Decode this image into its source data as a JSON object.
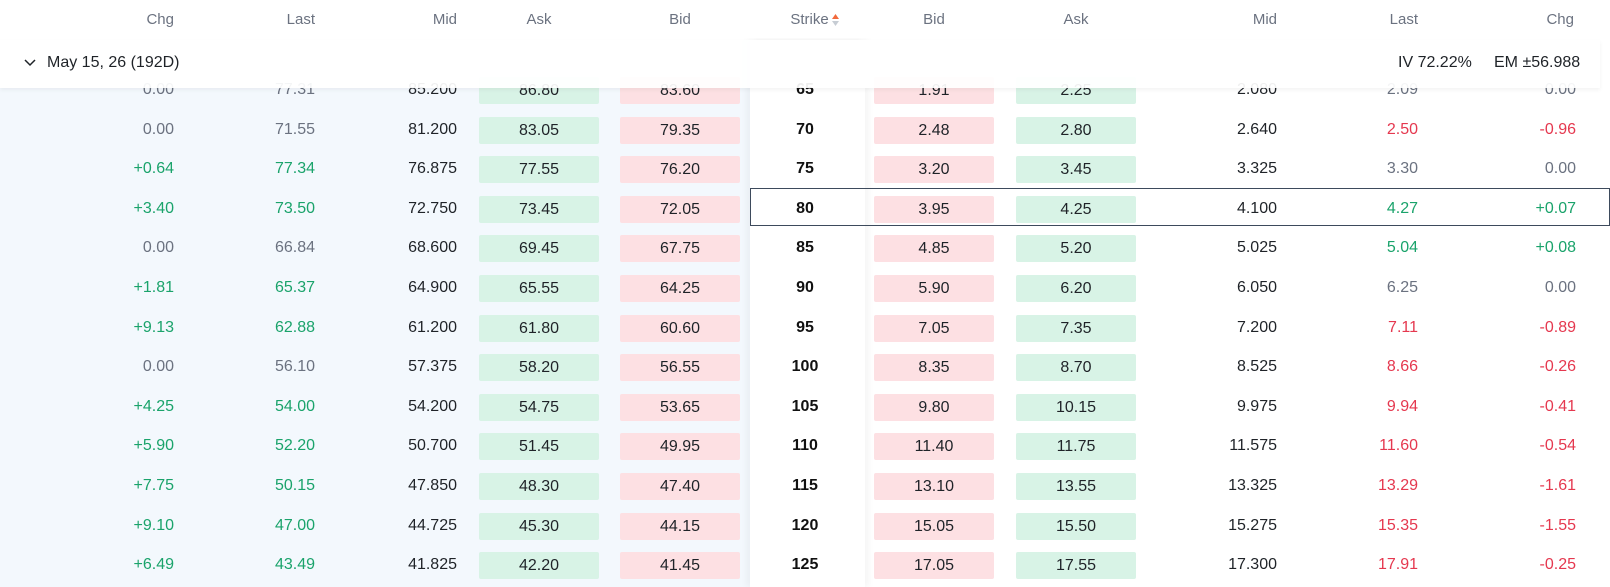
{
  "header": {
    "calls": {
      "chg": "Chg",
      "last": "Last",
      "mid": "Mid",
      "ask": "Ask",
      "bid": "Bid"
    },
    "strike": "Strike",
    "puts": {
      "bid": "Bid",
      "ask": "Ask",
      "mid": "Mid",
      "last": "Last",
      "chg": "Chg"
    }
  },
  "sort_icon": "sort-asc-desc-icon",
  "expiry": {
    "date_label": "May 15, 26 (192D)",
    "iv": "IV 72.22%",
    "em": "EM ±56.988",
    "chevron_icon": "chevron-down-icon"
  },
  "colors": {
    "positive": "#1aa36b",
    "negative": "#e5384f",
    "ask_bg": "#d8f3e6",
    "bid_bg": "#fde0e3"
  },
  "selected_strike": "80",
  "rows": [
    {
      "strike": "65",
      "c_chg": "0.00",
      "c_last": "77.31",
      "c_mid": "85.200",
      "c_ask": "86.80",
      "c_bid": "83.60",
      "p_bid": "1.91",
      "p_ask": "2.25",
      "p_mid": "2.080",
      "p_last": "2.09",
      "p_chg": "0.00"
    },
    {
      "strike": "70",
      "c_chg": "0.00",
      "c_last": "71.55",
      "c_mid": "81.200",
      "c_ask": "83.05",
      "c_bid": "79.35",
      "p_bid": "2.48",
      "p_ask": "2.80",
      "p_mid": "2.640",
      "p_last": "2.50",
      "p_chg": "-0.96"
    },
    {
      "strike": "75",
      "c_chg": "+0.64",
      "c_last": "77.34",
      "c_mid": "76.875",
      "c_ask": "77.55",
      "c_bid": "76.20",
      "p_bid": "3.20",
      "p_ask": "3.45",
      "p_mid": "3.325",
      "p_last": "3.30",
      "p_chg": "0.00"
    },
    {
      "strike": "80",
      "c_chg": "+3.40",
      "c_last": "73.50",
      "c_mid": "72.750",
      "c_ask": "73.45",
      "c_bid": "72.05",
      "p_bid": "3.95",
      "p_ask": "4.25",
      "p_mid": "4.100",
      "p_last": "4.27",
      "p_chg": "+0.07"
    },
    {
      "strike": "85",
      "c_chg": "0.00",
      "c_last": "66.84",
      "c_mid": "68.600",
      "c_ask": "69.45",
      "c_bid": "67.75",
      "p_bid": "4.85",
      "p_ask": "5.20",
      "p_mid": "5.025",
      "p_last": "5.04",
      "p_chg": "+0.08"
    },
    {
      "strike": "90",
      "c_chg": "+1.81",
      "c_last": "65.37",
      "c_mid": "64.900",
      "c_ask": "65.55",
      "c_bid": "64.25",
      "p_bid": "5.90",
      "p_ask": "6.20",
      "p_mid": "6.050",
      "p_last": "6.25",
      "p_chg": "0.00"
    },
    {
      "strike": "95",
      "c_chg": "+9.13",
      "c_last": "62.88",
      "c_mid": "61.200",
      "c_ask": "61.80",
      "c_bid": "60.60",
      "p_bid": "7.05",
      "p_ask": "7.35",
      "p_mid": "7.200",
      "p_last": "7.11",
      "p_chg": "-0.89"
    },
    {
      "strike": "100",
      "c_chg": "0.00",
      "c_last": "56.10",
      "c_mid": "57.375",
      "c_ask": "58.20",
      "c_bid": "56.55",
      "p_bid": "8.35",
      "p_ask": "8.70",
      "p_mid": "8.525",
      "p_last": "8.66",
      "p_chg": "-0.26"
    },
    {
      "strike": "105",
      "c_chg": "+4.25",
      "c_last": "54.00",
      "c_mid": "54.200",
      "c_ask": "54.75",
      "c_bid": "53.65",
      "p_bid": "9.80",
      "p_ask": "10.15",
      "p_mid": "9.975",
      "p_last": "9.94",
      "p_chg": "-0.41"
    },
    {
      "strike": "110",
      "c_chg": "+5.90",
      "c_last": "52.20",
      "c_mid": "50.700",
      "c_ask": "51.45",
      "c_bid": "49.95",
      "p_bid": "11.40",
      "p_ask": "11.75",
      "p_mid": "11.575",
      "p_last": "11.60",
      "p_chg": "-0.54"
    },
    {
      "strike": "115",
      "c_chg": "+7.75",
      "c_last": "50.15",
      "c_mid": "47.850",
      "c_ask": "48.30",
      "c_bid": "47.40",
      "p_bid": "13.10",
      "p_ask": "13.55",
      "p_mid": "13.325",
      "p_last": "13.29",
      "p_chg": "-1.61"
    },
    {
      "strike": "120",
      "c_chg": "+9.10",
      "c_last": "47.00",
      "c_mid": "44.725",
      "c_ask": "45.30",
      "c_bid": "44.15",
      "p_bid": "15.05",
      "p_ask": "15.50",
      "p_mid": "15.275",
      "p_last": "15.35",
      "p_chg": "-1.55"
    },
    {
      "strike": "125",
      "c_chg": "+6.49",
      "c_last": "43.49",
      "c_mid": "41.825",
      "c_ask": "42.20",
      "c_bid": "41.45",
      "p_bid": "17.05",
      "p_ask": "17.55",
      "p_mid": "17.300",
      "p_last": "17.91",
      "p_chg": "-0.25"
    }
  ]
}
